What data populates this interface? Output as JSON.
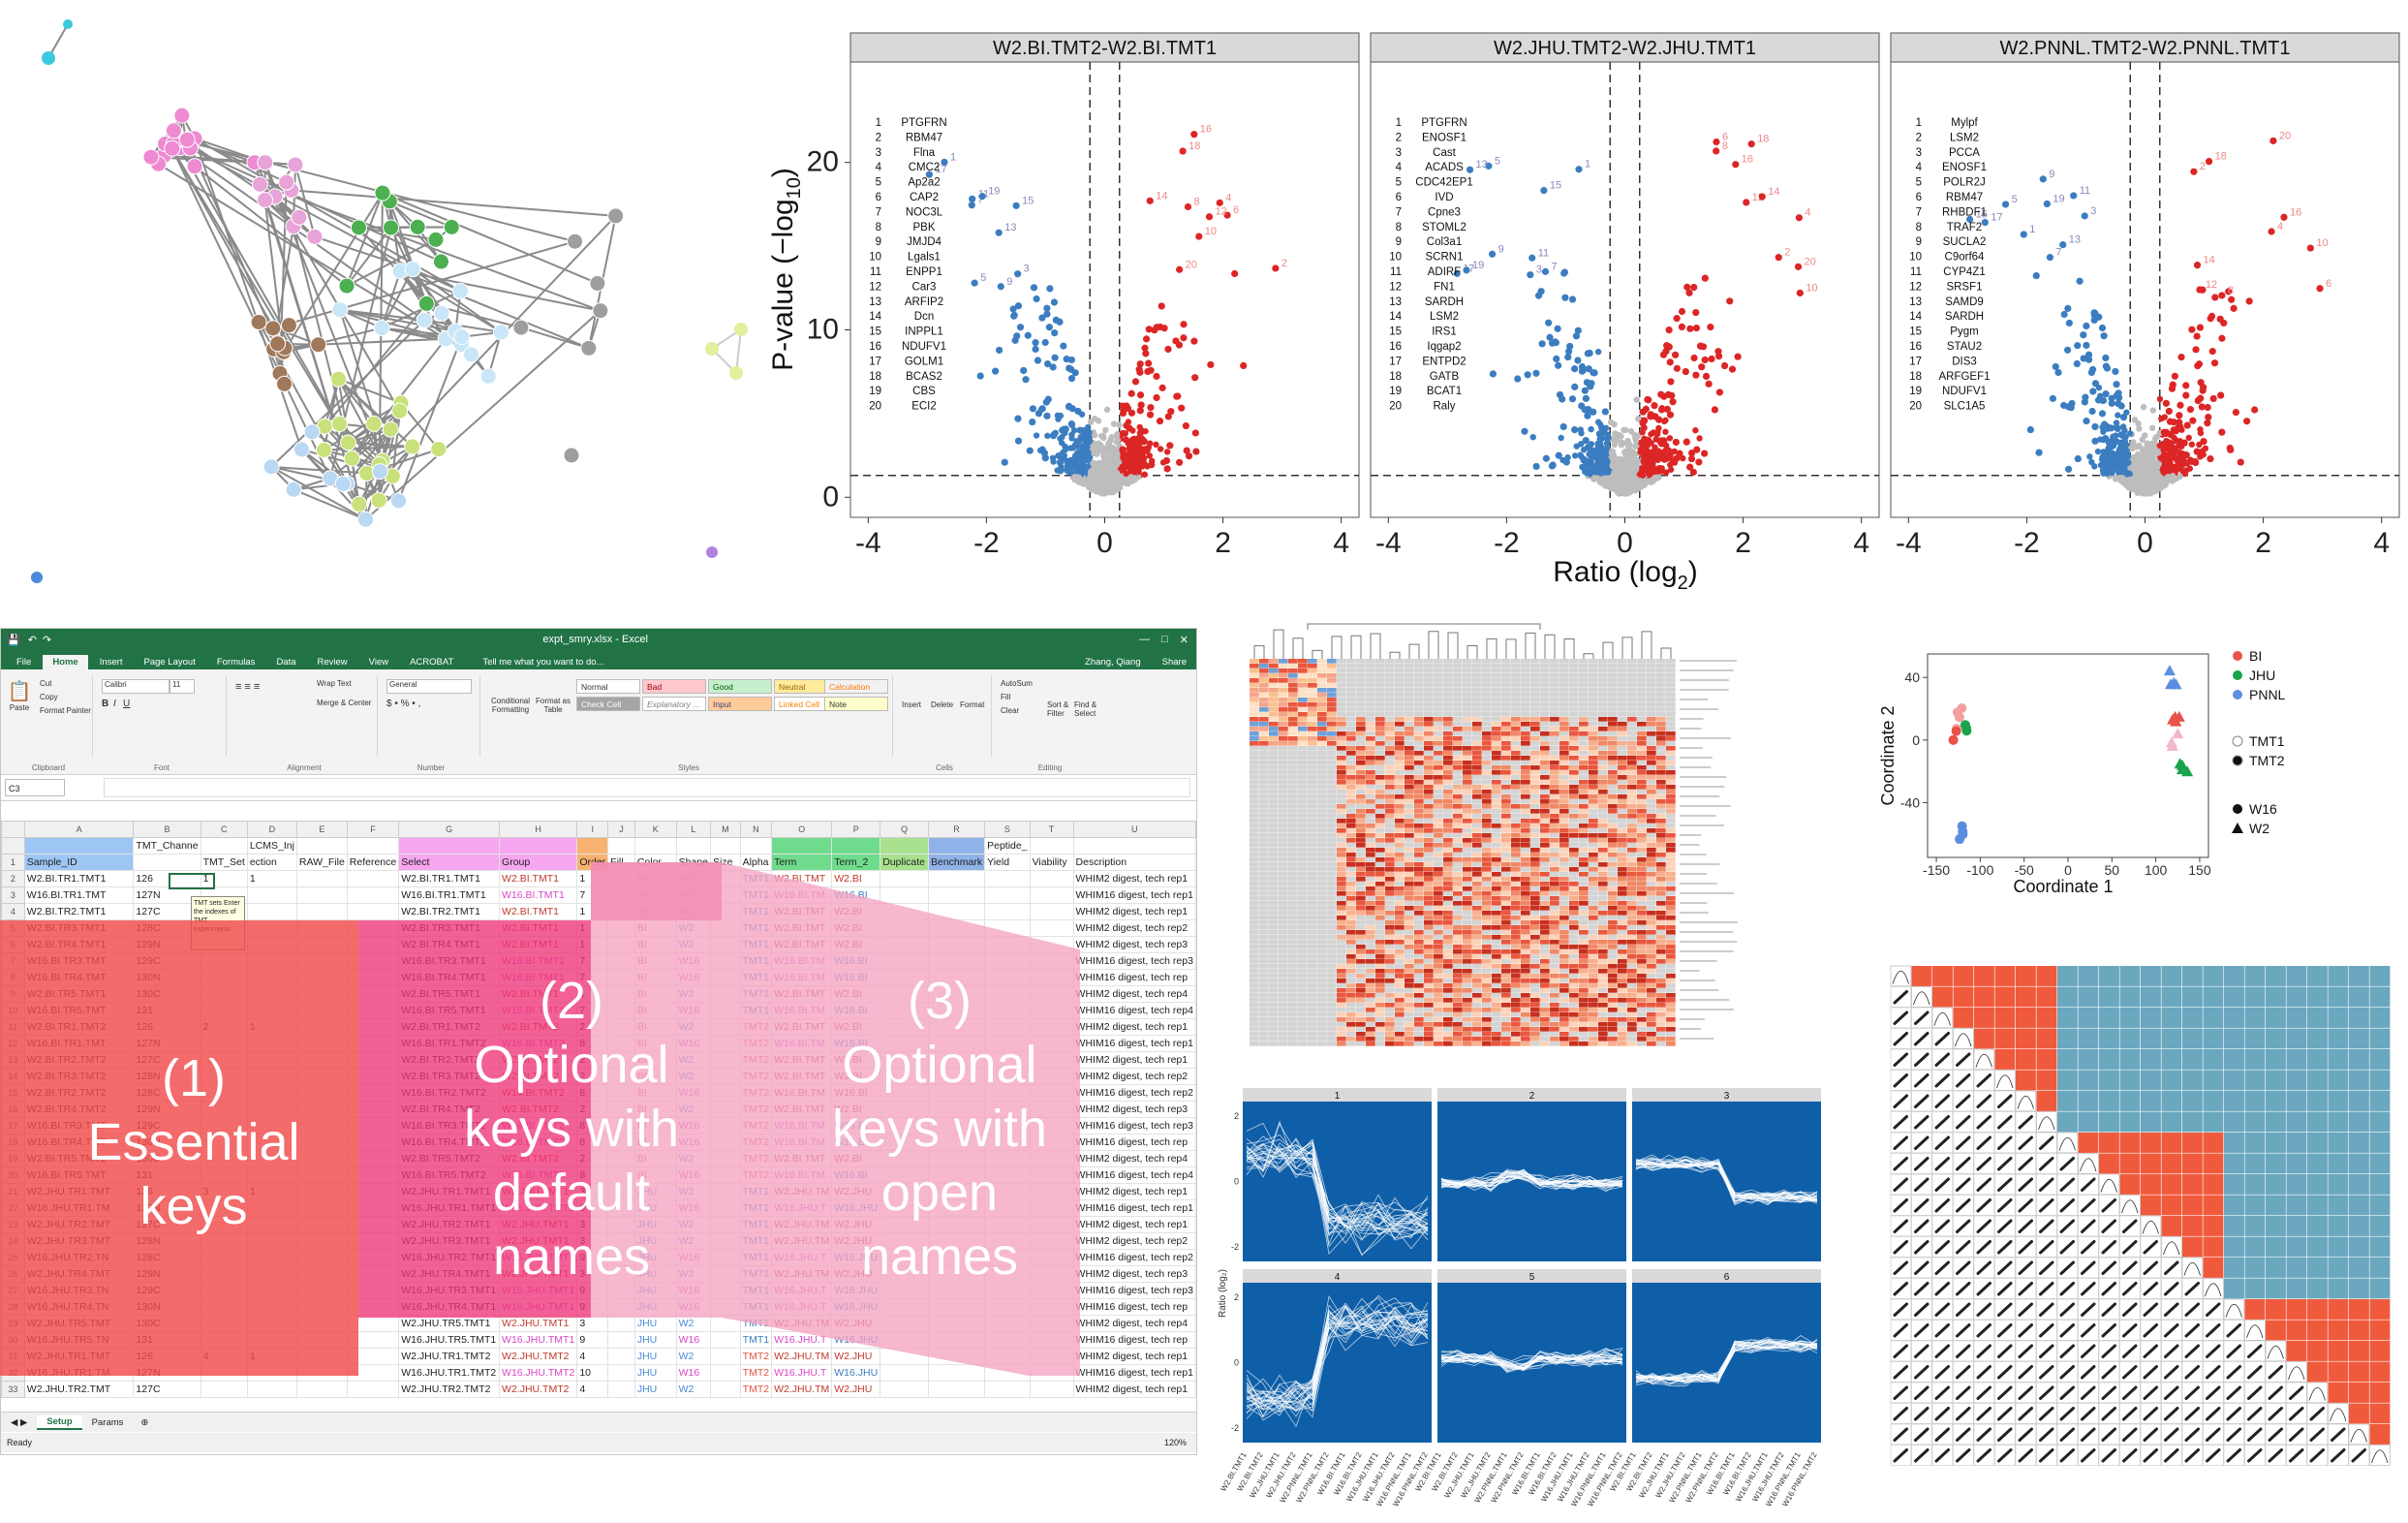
{
  "volcano": {
    "ylabel": "P-value (−log₁₀)",
    "xlabel": "Ratio (log₂)",
    "x_ticks": [
      "-4",
      "-2",
      "0",
      "2",
      "4"
    ],
    "y_ticks": [
      "0",
      "10",
      "20"
    ],
    "panels": [
      {
        "title": "W2.BI.TMT2-W2.BI.TMT1",
        "genes": [
          "PTGFRN",
          "RBM47",
          "Flna",
          "CMC2",
          "Ap2a2",
          "CAP2",
          "NOC3L",
          "PBK",
          "JMJD4",
          "Lgals1",
          "ENPP1",
          "Car3",
          "ARFIP2",
          "Dcn",
          "INPPL1",
          "NDUFV1",
          "GOLM1",
          "BCAS2",
          "CBS",
          "ECI2"
        ]
      },
      {
        "title": "W2.JHU.TMT2-W2.JHU.TMT1",
        "genes": [
          "PTGFRN",
          "ENOSF1",
          "Cast",
          "ACADS",
          "CDC42EP1",
          "IVD",
          "Cpne3",
          "STOML2",
          "Col3a1",
          "SCRN1",
          "ADIRF",
          "FN1",
          "SARDH",
          "LSM2",
          "IRS1",
          "Iqgap2",
          "ENTPD2",
          "GATB",
          "BCAT1",
          "Raly"
        ]
      },
      {
        "title": "W2.PNNL.TMT2-W2.PNNL.TMT1",
        "genes": [
          "Mylpf",
          "LSM2",
          "PCCA",
          "ENOSF1",
          "POLR2J",
          "RBM47",
          "RHBDF1",
          "TRAF2",
          "SUCLA2",
          "C9orf64",
          "CYP4Z1",
          "SRSF1",
          "SAMD9",
          "SARDH",
          "Pygm",
          "STAU2",
          "DIS3",
          "ARFGEF1",
          "NDUFV1",
          "SLC1A5"
        ]
      }
    ]
  },
  "excel": {
    "title": "expt_smry.xlsx - Excel",
    "user": "Zhang, Qiang",
    "share": "Share",
    "tabs": [
      "File",
      "Home",
      "Insert",
      "Page Layout",
      "Formulas",
      "Data",
      "Review",
      "View",
      "ACROBAT"
    ],
    "tell_me": "Tell me what you want to do...",
    "clipboard": {
      "cut": "Cut",
      "copy": "Copy",
      "paste": "Paste",
      "painter": "Format Painter",
      "label": "Clipboard"
    },
    "font": {
      "name": "Calibri",
      "size": "11",
      "label": "Font"
    },
    "alignment": {
      "wrap": "Wrap Text",
      "merge": "Merge & Center",
      "label": "Alignment"
    },
    "number": {
      "format": "General",
      "label": "Number"
    },
    "styles": {
      "conditional": "Conditional Formatting",
      "format_table": "Format as Table",
      "normal": "Normal",
      "bad": "Bad",
      "good": "Good",
      "neutral": "Neutral",
      "calculation": "Calculation",
      "check_cell": "Check Cell",
      "explanatory": "Explanatory ...",
      "input": "Input",
      "linked": "Linked Cell",
      "note": "Note",
      "label": "Styles"
    },
    "cells": {
      "insert": "Insert",
      "delete": "Delete",
      "format": "Format",
      "label": "Cells"
    },
    "editing": {
      "autosum": "AutoSum",
      "fill": "Fill",
      "clear": "Clear",
      "sort": "Sort & Filter",
      "find": "Find & Select",
      "label": "Editing"
    },
    "name_box": "C3",
    "comment": "TMT sets Enter the indexes of TMT experiments",
    "sheet_tabs": [
      "Setup",
      "Params"
    ],
    "status": "Ready",
    "zoom": "120%",
    "columns": [
      "A",
      "B",
      "C",
      "D",
      "E",
      "F",
      "G",
      "H",
      "I",
      "J",
      "K",
      "L",
      "M",
      "N",
      "O",
      "P",
      "Q",
      "R",
      "S",
      "T",
      "U"
    ],
    "header_row1": [
      "",
      "TMT_Channe",
      "",
      "LCMS_Inj",
      "",
      "",
      "",
      "",
      "",
      "",
      "",
      "",
      "",
      "",
      "",
      "",
      "",
      "",
      "Peptide_",
      "",
      ""
    ],
    "header_row2": [
      "Sample_ID",
      "",
      "TMT_Set",
      "ection",
      "RAW_File",
      "Reference",
      "Select",
      "Group",
      "Order",
      "Fill",
      "Color",
      "Shape",
      "Size",
      "Alpha",
      "Term",
      "Term_2",
      "Duplicate",
      "Benchmark",
      "Yield",
      "Viability",
      "Description"
    ],
    "rows": [
      [
        "W2.BI.TR1.TMT1",
        "126",
        "1",
        "1",
        "",
        "",
        "W2.BI.TR1.TMT1",
        "W2.BI.TMT1",
        "1",
        "",
        "BI",
        "W2",
        "",
        "TMT1",
        "W2.BI.TMT",
        "W2.BI",
        "",
        "",
        "",
        "",
        "WHIM2 digest, tech rep1"
      ],
      [
        "W16.BI.TR1.TMT",
        "127N",
        "",
        "",
        "",
        "",
        "W16.BI.TR1.TMT1",
        "W16.BI.TMT1",
        "7",
        "",
        "BI",
        "W16",
        "",
        "TMT1",
        "W16.BI.TM",
        "W16.BI",
        "",
        "",
        "",
        "",
        "WHIM16 digest, tech rep1"
      ],
      [
        "W2.BI.TR2.TMT1",
        "127C",
        "",
        "",
        "",
        "",
        "W2.BI.TR2.TMT1",
        "W2.BI.TMT1",
        "1",
        "",
        "BI",
        "W2",
        "",
        "TMT1",
        "W2.BI.TMT",
        "W2.BI",
        "",
        "",
        "",
        "",
        "WHIM2 digest, tech rep1"
      ],
      [
        "W2.BI.TR3.TMT1",
        "128C",
        "",
        "",
        "",
        "",
        "W2.BI.TR3.TMT1",
        "W2.BI.TMT1",
        "1",
        "",
        "BI",
        "W2",
        "",
        "TMT1",
        "W2.BI.TMT",
        "W2.BI",
        "",
        "",
        "",
        "",
        "WHIM2 digest, tech rep2"
      ],
      [
        "W2.BI.TR4.TMT1",
        "129N",
        "",
        "",
        "",
        "",
        "W2.BI.TR4.TMT1",
        "W2.BI.TMT1",
        "1",
        "",
        "BI",
        "W2",
        "",
        "TMT1",
        "W2.BI.TMT",
        "W2.BI",
        "",
        "",
        "",
        "",
        "WHIM2 digest, tech rep3"
      ],
      [
        "W16.BI.TR3.TMT",
        "129C",
        "",
        "",
        "",
        "",
        "W16.BI.TR3.TMT1",
        "W16.BI.TMT1",
        "7",
        "",
        "BI",
        "W16",
        "",
        "TMT1",
        "W16.BI.TM",
        "W16.BI",
        "",
        "",
        "",
        "",
        "WHIM16 digest, tech rep3"
      ],
      [
        "W16.BI.TR4.TMT",
        "130N",
        "",
        "",
        "",
        "",
        "W16.BI.TR4.TMT1",
        "W16.BI.TMT1",
        "7",
        "",
        "BI",
        "W16",
        "",
        "TMT1",
        "W16.BI.TM",
        "W16.BI",
        "",
        "",
        "",
        "",
        "WHIM16 digest, tech rep"
      ],
      [
        "W2.BI.TR5.TMT1",
        "130C",
        "",
        "",
        "",
        "",
        "W2.BI.TR5.TMT1",
        "W2.BI.TMT1",
        "1",
        "",
        "BI",
        "W2",
        "",
        "TMT1",
        "W2.BI.TMT",
        "W2.BI",
        "",
        "",
        "",
        "",
        "WHIM2 digest, tech rep4"
      ],
      [
        "W16.BI.TR5.TMT",
        "131",
        "",
        "",
        "",
        "",
        "W16.BI.TR5.TMT1",
        "W16.BI.TMT1",
        "7",
        "",
        "BI",
        "W16",
        "",
        "TMT1",
        "W16.BI.TM",
        "W16.BI",
        "",
        "",
        "",
        "",
        "WHIM16 digest, tech rep4"
      ],
      [
        "W2.BI.TR1.TMT2",
        "126",
        "2",
        "1",
        "",
        "",
        "W2.BI.TR1.TMT2",
        "W2.BI.TMT2",
        "2",
        "",
        "BI",
        "W2",
        "",
        "TMT2",
        "W2.BI.TMT",
        "W2.BI",
        "",
        "",
        "",
        "",
        "WHIM2 digest, tech rep1"
      ],
      [
        "W16.BI.TR1.TMT",
        "127N",
        "",
        "",
        "",
        "",
        "W16.BI.TR1.TMT2",
        "W16.BI.TMT2",
        "8",
        "",
        "BI",
        "W16",
        "",
        "TMT2",
        "W16.BI.TM",
        "W16.BI",
        "",
        "",
        "",
        "",
        "WHIM16 digest, tech rep1"
      ],
      [
        "W2.BI.TR2.TMT2",
        "127C",
        "",
        "",
        "",
        "",
        "W2.BI.TR2.TMT2",
        "W2.BI.TMT2",
        "2",
        "",
        "BI",
        "W2",
        "",
        "TMT2",
        "W2.BI.TMT",
        "W2.BI",
        "",
        "",
        "",
        "",
        "WHIM2 digest, tech rep1"
      ],
      [
        "W2.BI.TR3.TMT2",
        "128N",
        "",
        "",
        "",
        "",
        "W2.BI.TR3.TMT2",
        "W2.BI.TMT2",
        "2",
        "",
        "BI",
        "W2",
        "",
        "TMT2",
        "W2.BI.TMT",
        "W2.BI",
        "",
        "",
        "",
        "",
        "WHIM2 digest, tech rep2"
      ],
      [
        "W2.BI.TR2.TMT2",
        "128C",
        "",
        "",
        "",
        "",
        "W16.BI.TR2.TMT2",
        "W16.BI.TMT2",
        "8",
        "",
        "BI",
        "W16",
        "",
        "TMT2",
        "W16.BI.TM",
        "W16.BI",
        "",
        "",
        "",
        "",
        "WHIM16 digest, tech rep2"
      ],
      [
        "W2.BI.TR4.TMT2",
        "129N",
        "",
        "",
        "",
        "",
        "W2.BI.TR4.TMT2",
        "W2.BI.TMT2",
        "2",
        "",
        "BI",
        "W2",
        "",
        "TMT2",
        "W2.BI.TMT",
        "W2.BI",
        "",
        "",
        "",
        "",
        "WHIM2 digest, tech rep3"
      ],
      [
        "W16.BI.TR3.TMT",
        "129C",
        "",
        "",
        "",
        "",
        "W16.BI.TR3.TMT2",
        "W16.BI.TMT2",
        "8",
        "",
        "BI",
        "W16",
        "",
        "TMT2",
        "W16.BI.TM",
        "W16.BI",
        "",
        "",
        "",
        "",
        "WHIM16 digest, tech rep3"
      ],
      [
        "W16.BI.TR4.TMT",
        "130N",
        "",
        "",
        "",
        "",
        "W16.BI.TR4.TMT2",
        "W16.BI.TMT2",
        "8",
        "",
        "BI",
        "W16",
        "",
        "TMT2",
        "W16.BI.TM",
        "W16.BI",
        "",
        "",
        "",
        "",
        "WHIM16 digest, tech rep"
      ],
      [
        "W2.BI.TR5.TMT2",
        "130C",
        "",
        "",
        "",
        "",
        "W2.BI.TR5.TMT2",
        "W2.BI.TMT2",
        "2",
        "",
        "BI",
        "W2",
        "",
        "TMT2",
        "W2.BI.TMT",
        "W2.BI",
        "",
        "",
        "",
        "",
        "WHIM2 digest, tech rep4"
      ],
      [
        "W16.BI.TR5.TMT",
        "131",
        "",
        "",
        "",
        "",
        "W16.BI.TR5.TMT2",
        "W16.BI.TMT2",
        "8",
        "",
        "BI",
        "W16",
        "",
        "TMT2",
        "W16.BI.TM",
        "W16.BI",
        "",
        "",
        "",
        "",
        "WHIM16 digest, tech rep4"
      ],
      [
        "W2.JHU.TR1.TMT",
        "126",
        "3",
        "1",
        "",
        "",
        "W2.JHU.TR1.TMT1",
        "W2.JHU.TMT1",
        "3",
        "",
        "JHU",
        "W2",
        "",
        "TMT1",
        "W2.JHU.TM",
        "W2.JHU",
        "",
        "",
        "",
        "",
        "WHIM2 digest, tech rep1"
      ],
      [
        "W16.JHU.TR1.TM",
        "127N",
        "",
        "",
        "",
        "",
        "W16.JHU.TR1.TMT1",
        "W16.JHU.TMT1",
        "9",
        "",
        "JHU",
        "W16",
        "",
        "TMT1",
        "W16.JHU.T",
        "W16.JHU",
        "",
        "",
        "",
        "",
        "WHIM16 digest, tech rep1"
      ],
      [
        "W2.JHU.TR2.TMT",
        "127C",
        "",
        "",
        "",
        "",
        "W2.JHU.TR2.TMT1",
        "W2.JHU.TMT1",
        "3",
        "",
        "JHU",
        "W2",
        "",
        "TMT1",
        "W2.JHU.TM",
        "W2.JHU",
        "",
        "",
        "",
        "",
        "WHIM2 digest, tech rep1"
      ],
      [
        "W2.JHU.TR3.TMT",
        "128N",
        "",
        "",
        "",
        "",
        "W2.JHU.TR3.TMT1",
        "W2.JHU.TMT1",
        "3",
        "",
        "JHU",
        "W2",
        "",
        "TMT1",
        "W2.JHU.TM",
        "W2.JHU",
        "",
        "",
        "",
        "",
        "WHIM2 digest, tech rep2"
      ],
      [
        "W16.JHU.TR2.TN",
        "128C",
        "",
        "",
        "",
        "",
        "W16.JHU.TR2.TMT1",
        "W16.JHU.TMT1",
        "9",
        "",
        "JHU",
        "W16",
        "",
        "TMT1",
        "W16.JHU.T",
        "W16.JHU",
        "",
        "",
        "",
        "",
        "WHIM16 digest, tech rep2"
      ],
      [
        "W2.JHU.TR4.TMT",
        "129N",
        "",
        "",
        "",
        "",
        "W2.JHU.TR4.TMT1",
        "W2.JHU.TMT1",
        "3",
        "",
        "JHU",
        "W2",
        "",
        "TMT1",
        "W2.JHU.TM",
        "W2.JHU",
        "",
        "",
        "",
        "",
        "WHIM2 digest, tech rep3"
      ],
      [
        "W16.JHU.TR3.TN",
        "129C",
        "",
        "",
        "",
        "",
        "W16.JHU.TR3.TMT1",
        "W16.JHU.TMT1",
        "9",
        "",
        "JHU",
        "W16",
        "",
        "TMT1",
        "W16.JHU.T",
        "W16.JHU",
        "",
        "",
        "",
        "",
        "WHIM16 digest, tech rep3"
      ],
      [
        "W16.JHU.TR4.TN",
        "130N",
        "",
        "",
        "",
        "",
        "W16.JHU.TR4.TMT1",
        "W16.JHU.TMT1",
        "9",
        "",
        "JHU",
        "W16",
        "",
        "TMT1",
        "W16.JHU.T",
        "W16.JHU",
        "",
        "",
        "",
        "",
        "WHIM16 digest, tech rep"
      ],
      [
        "W2.JHU.TR5.TMT",
        "130C",
        "",
        "",
        "",
        "",
        "W2.JHU.TR5.TMT1",
        "W2.JHU.TMT1",
        "3",
        "",
        "JHU",
        "W2",
        "",
        "TMT1",
        "W2.JHU.TM",
        "W2.JHU",
        "",
        "",
        "",
        "",
        "WHIM2 digest, tech rep4"
      ],
      [
        "W16.JHU.TR5.TN",
        "131",
        "",
        "",
        "",
        "",
        "W16.JHU.TR5.TMT1",
        "W16.JHU.TMT1",
        "9",
        "",
        "JHU",
        "W16",
        "",
        "TMT1",
        "W16.JHU.T",
        "W16.JHU",
        "",
        "",
        "",
        "",
        "WHIM16 digest, tech rep"
      ],
      [
        "W2.JHU.TR1.TMT",
        "126",
        "4",
        "1",
        "",
        "",
        "W2.JHU.TR1.TMT2",
        "W2.JHU.TMT2",
        "4",
        "",
        "JHU",
        "W2",
        "",
        "TMT2",
        "W2.JHU.TM",
        "W2.JHU",
        "",
        "",
        "",
        "",
        "WHIM2 digest, tech rep1"
      ],
      [
        "W16.JHU.TR1.TM",
        "127N",
        "",
        "",
        "",
        "",
        "W16.JHU.TR1.TMT2",
        "W16.JHU.TMT2",
        "10",
        "",
        "JHU",
        "W16",
        "",
        "TMT2",
        "W16.JHU.T",
        "W16.JHU",
        "",
        "",
        "",
        "",
        "WHIM16 digest, tech rep1"
      ],
      [
        "W2.JHU.TR2.TMT",
        "127C",
        "",
        "",
        "",
        "",
        "W2.JHU.TR2.TMT2",
        "W2.JHU.TMT2",
        "4",
        "",
        "JHU",
        "W2",
        "",
        "TMT2",
        "W2.JHU.TM",
        "W2.JHU",
        "",
        "",
        "",
        "",
        "WHIM2 digest, tech rep1"
      ]
    ]
  },
  "annotations": {
    "essential": [
      "(1)",
      "Essential",
      "keys"
    ],
    "default": [
      "(2)",
      "Optional",
      "keys with",
      "default",
      "names"
    ],
    "open": [
      "(3)",
      "Optional",
      "keys with",
      "open",
      "names"
    ]
  },
  "mds": {
    "xlabel": "Coordinate 1",
    "ylabel": "Coordinate 2",
    "x_ticks": [
      "-150",
      "-100",
      "-50",
      "0",
      "50",
      "100",
      "150"
    ],
    "y_ticks": [
      "-40",
      "0",
      "40"
    ],
    "legend_color": [
      {
        "label": "BI",
        "color": "#e8524a"
      },
      {
        "label": "JHU",
        "color": "#1aa34a"
      },
      {
        "label": "PNNL",
        "color": "#5b8ee0"
      }
    ],
    "legend_fill": [
      "TMT1",
      "TMT2"
    ],
    "legend_shape": [
      "W16",
      "W2"
    ]
  },
  "trend": {
    "facets": [
      "1",
      "2",
      "3",
      "4",
      "5",
      "6"
    ],
    "ylabel": "Ratio (log₂)",
    "y_ticks": [
      "2",
      "0",
      "-2"
    ],
    "x_labels": [
      "W2.BI.TMT1",
      "W2.BI.TMT2",
      "W2.JHU.TMT1",
      "W2.JHU.TMT2",
      "W2.PNNL.TMT1",
      "W2.PNNL.TMT2",
      "W16.BI.TMT1",
      "W16.BI.TMT2",
      "W16.JHU.TMT1",
      "W16.JHU.TMT2",
      "W16.PNNL.TMT1",
      "W16.PNNL.TMT2"
    ],
    "colors": {
      "bg": "#0f5fa8",
      "line": "#ffffff"
    }
  },
  "colors": {
    "blue": "#3b7dc0",
    "red": "#dc2626",
    "grey": "#bdbdbd",
    "corr_red": "#f05a3c",
    "corr_blue": "#6ba7bf"
  }
}
